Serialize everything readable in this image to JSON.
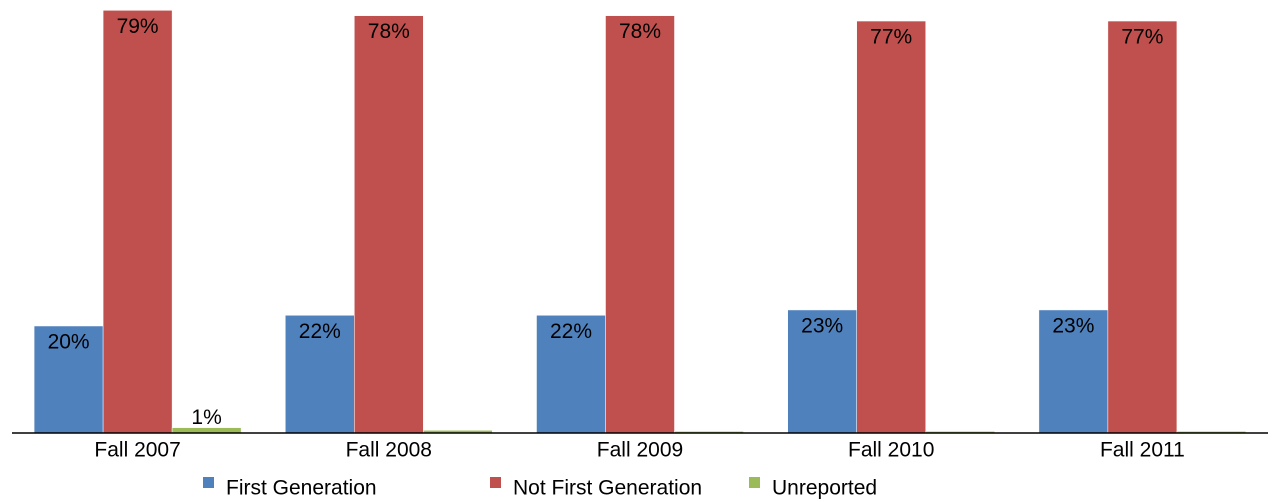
{
  "chart_data": {
    "type": "bar",
    "categories": [
      "Fall 2007",
      "Fall 2008",
      "Fall 2009",
      "Fall 2010",
      "Fall 2011"
    ],
    "series": [
      {
        "name": "First Generation",
        "color": "#4f81bd",
        "values": [
          20,
          22,
          22,
          23,
          23
        ],
        "value_labels": [
          "20%",
          "22%",
          "22%",
          "23%",
          "23%"
        ]
      },
      {
        "name": "Not First Generation",
        "color": "#c0504d",
        "values": [
          79,
          78,
          78,
          77,
          77
        ],
        "value_labels": [
          "79%",
          "78%",
          "78%",
          "77%",
          "77%"
        ]
      },
      {
        "name": "Unreported",
        "color": "#9bbb59",
        "values": [
          1,
          0.5,
          0.3,
          0.3,
          0.3
        ],
        "value_labels": [
          "1%",
          null,
          null,
          null,
          null
        ]
      }
    ],
    "ylim": [
      0,
      80
    ],
    "legend": "bottom"
  }
}
